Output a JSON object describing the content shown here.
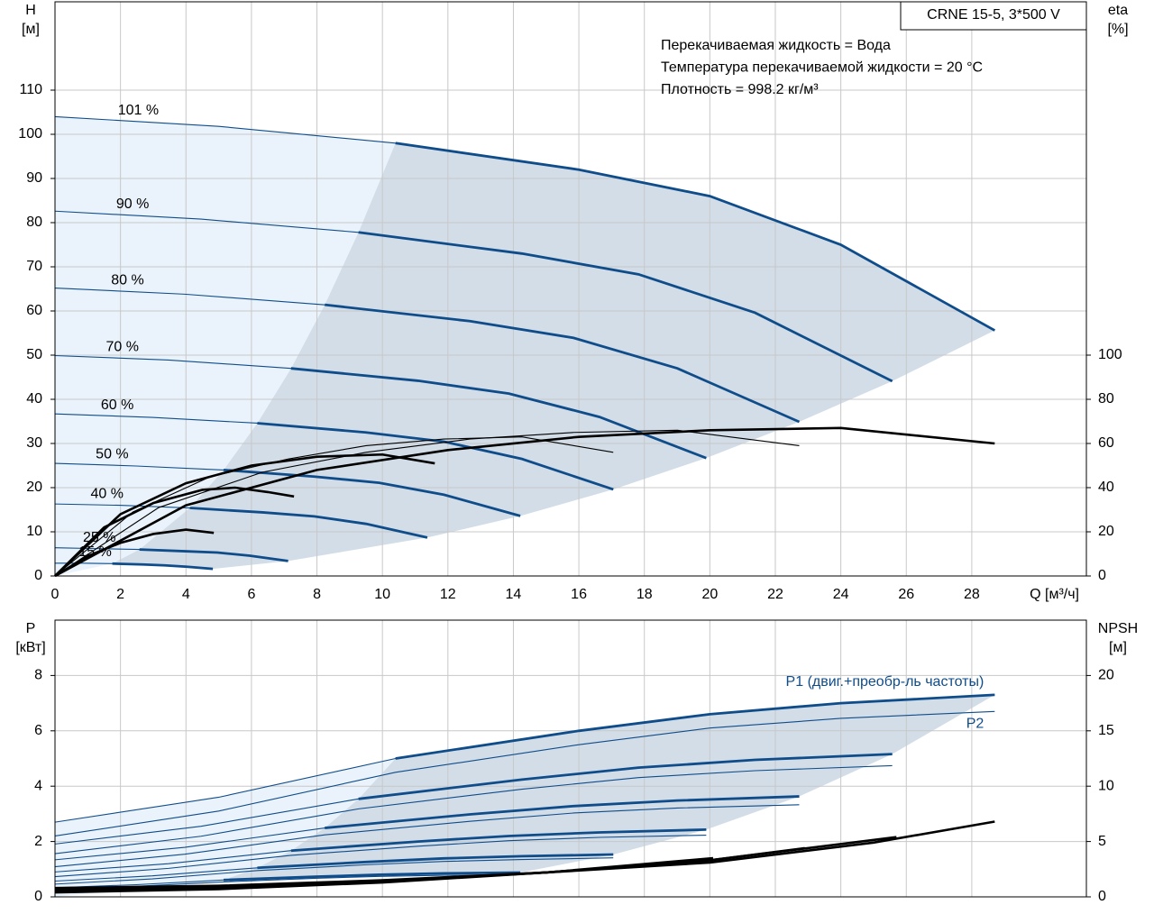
{
  "chart_data": [
    {
      "type": "line",
      "title": "CRNE 15-5, 3*500 V",
      "annotations": [
        "Перекачиваемая жидкость = Вода",
        "Температура перекачиваемой жидкости = 20 °C",
        "Плотность = 998.2 кг/м³"
      ],
      "xlabel": "Q [м³/ч]",
      "ylabel": [
        "H",
        "[м]"
      ],
      "y2label": [
        "eta",
        "[%]"
      ],
      "xlim": [
        0,
        31.5
      ],
      "ylim": [
        0,
        130
      ],
      "y2lim": [
        0,
        260
      ],
      "xticks": [
        0,
        2,
        4,
        6,
        8,
        10,
        12,
        14,
        16,
        18,
        20,
        22,
        24,
        26,
        28
      ],
      "yticks": [
        0,
        10,
        20,
        30,
        40,
        50,
        60,
        70,
        80,
        90,
        100,
        110
      ],
      "y2ticks": [
        0,
        20,
        40,
        60,
        80,
        100
      ],
      "grid": true,
      "show_xtick_labels": true,
      "series": [
        {
          "name": "101 %",
          "color": "#0f4c8a",
          "style": "operating",
          "x": [
            0,
            5,
            10.4,
            16,
            20,
            24,
            28.7
          ],
          "values": [
            104,
            101.8,
            98,
            92,
            86,
            75,
            55.6
          ]
        },
        {
          "name": "90 %",
          "color": "#0f4c8a",
          "style": "operating",
          "x": [
            0,
            4.46,
            9.27,
            14.26,
            17.82,
            21.38,
            25.57
          ],
          "values": [
            82.6,
            80.8,
            77.8,
            73.0,
            68.3,
            59.6,
            44.1
          ]
        },
        {
          "name": "80 %",
          "color": "#0f4c8a",
          "style": "operating",
          "x": [
            0,
            3.96,
            8.24,
            12.67,
            15.84,
            19.01,
            22.73
          ],
          "values": [
            65.2,
            63.8,
            61.4,
            57.7,
            53.9,
            47.0,
            34.9
          ]
        },
        {
          "name": "70 %",
          "color": "#0f4c8a",
          "style": "operating",
          "x": [
            0,
            3.47,
            7.21,
            11.09,
            13.86,
            16.63,
            19.89
          ],
          "values": [
            49.9,
            48.9,
            47.0,
            44.2,
            41.3,
            36.0,
            26.7
          ]
        },
        {
          "name": "60 %",
          "color": "#0f4c8a",
          "style": "operating",
          "x": [
            0,
            2.97,
            6.18,
            9.5,
            11.88,
            14.26,
            17.05
          ],
          "values": [
            36.7,
            35.9,
            34.6,
            32.5,
            30.4,
            26.5,
            19.6
          ]
        },
        {
          "name": "50 %",
          "color": "#0f4c8a",
          "style": "operating",
          "x": [
            0,
            2.48,
            5.15,
            7.92,
            9.9,
            11.88,
            14.21
          ],
          "values": [
            25.5,
            24.9,
            24.0,
            22.5,
            21.1,
            18.4,
            13.6
          ]
        },
        {
          "name": "40 %",
          "color": "#0f4c8a",
          "style": "operating",
          "x": [
            0,
            1.98,
            4.12,
            6.34,
            7.92,
            9.5,
            11.37
          ],
          "values": [
            16.3,
            16.0,
            15.4,
            14.4,
            13.5,
            11.8,
            8.7
          ]
        },
        {
          "name": "25 %",
          "color": "#0f4c8a",
          "style": "operating",
          "x": [
            0,
            1.24,
            2.58,
            3.97,
            4.96,
            5.95,
            7.12
          ],
          "values": [
            6.4,
            6.2,
            6.0,
            5.6,
            5.3,
            4.6,
            3.4
          ]
        },
        {
          "name": "15 %",
          "color": "#0f4c8a",
          "style": "operating",
          "x": [
            0,
            0.84,
            1.75,
            2.69,
            3.36,
            4.03,
            4.82
          ],
          "values": [
            2.9,
            2.9,
            2.8,
            2.6,
            2.4,
            2.1,
            1.6
          ]
        },
        {
          "color": "#000000",
          "style": "thick",
          "axis": "y2",
          "x": [
            0,
            4,
            8,
            12,
            16,
            20,
            24,
            28.7
          ],
          "values": [
            0,
            32,
            48,
            57,
            63,
            66,
            67,
            60
          ]
        },
        {
          "color": "#000000",
          "style": "thin",
          "axis": "y2",
          "x": [
            0,
            3.17,
            6.34,
            9.5,
            12.67,
            15.84,
            19.01,
            22.73
          ],
          "values": [
            0,
            31,
            47,
            56,
            62,
            65,
            66,
            59
          ]
        },
        {
          "color": "#000000",
          "style": "thin",
          "axis": "y2",
          "x": [
            0,
            2.38,
            4.75,
            7.13,
            9.5,
            11.88,
            14.26,
            17.05
          ],
          "values": [
            0,
            29,
            45,
            53,
            59,
            62,
            63,
            56
          ]
        },
        {
          "color": "#000000",
          "style": "thick",
          "axis": "y2",
          "x": [
            0,
            2,
            4,
            6,
            8,
            10,
            11.6
          ],
          "values": [
            0,
            28,
            42,
            50,
            54,
            55,
            51
          ]
        },
        {
          "color": "#000000",
          "style": "thick",
          "axis": "y2",
          "x": [
            0,
            1.5,
            3,
            4.5,
            5.5,
            6.5,
            7.3
          ],
          "values": [
            0,
            22,
            33,
            39,
            40,
            38,
            36
          ]
        },
        {
          "color": "#000000",
          "style": "thick",
          "axis": "y2",
          "x": [
            0,
            1,
            2,
            3,
            4,
            4.85
          ],
          "values": [
            0,
            9,
            15,
            19,
            21,
            19.5
          ]
        }
      ]
    },
    {
      "type": "line",
      "ylabel": [
        "P",
        "[кВт]"
      ],
      "y2label": [
        "NPSH",
        "[м]"
      ],
      "xlim": [
        0,
        31.5
      ],
      "ylim": [
        0,
        10
      ],
      "y2lim": [
        0,
        25
      ],
      "xticks": [
        0,
        2,
        4,
        6,
        8,
        10,
        12,
        14,
        16,
        18,
        20,
        22,
        24,
        26,
        28
      ],
      "yticks": [
        0,
        2,
        4,
        6,
        8
      ],
      "y2ticks": [
        0,
        5,
        10,
        15,
        20
      ],
      "grid": true,
      "show_xtick_labels": false,
      "series": [
        {
          "name": "P1 (двиг.+преобр-ль частоты)",
          "color": "#0f4c8a",
          "style": "operating",
          "x": [
            0,
            5,
            10.4,
            16,
            20,
            24,
            28.7
          ],
          "values": [
            2.7,
            3.6,
            5.0,
            6.0,
            6.6,
            7.0,
            7.3
          ]
        },
        {
          "color": "#0f4c8a",
          "style": "operating",
          "x": [
            0,
            4.46,
            9.27,
            14.26,
            17.82,
            21.38,
            25.57
          ],
          "values": [
            1.91,
            2.55,
            3.54,
            4.24,
            4.67,
            4.95,
            5.16
          ]
        },
        {
          "color": "#0f4c8a",
          "style": "operating",
          "x": [
            0,
            3.96,
            8.24,
            12.67,
            15.84,
            19.01,
            22.73
          ],
          "values": [
            1.34,
            1.79,
            2.49,
            2.98,
            3.28,
            3.48,
            3.63
          ]
        },
        {
          "color": "#0f4c8a",
          "style": "operating",
          "x": [
            0,
            3.47,
            7.21,
            11.09,
            13.86,
            16.63,
            19.89
          ],
          "values": [
            0.9,
            1.2,
            1.67,
            2.0,
            2.2,
            2.33,
            2.43
          ]
        },
        {
          "color": "#0f4c8a",
          "style": "operating",
          "x": [
            0,
            2.97,
            6.18,
            9.5,
            11.88,
            14.26,
            17.05
          ],
          "values": [
            0.57,
            0.76,
            1.05,
            1.26,
            1.39,
            1.47,
            1.53
          ]
        },
        {
          "color": "#0f4c8a",
          "style": "operating",
          "x": [
            0,
            2.48,
            5.15,
            7.92,
            9.9,
            11.88,
            14.21
          ],
          "values": [
            0.33,
            0.44,
            0.61,
            0.73,
            0.8,
            0.85,
            0.88
          ]
        },
        {
          "name": "P2",
          "color": "#0f4c8a",
          "style": "thin",
          "x": [
            0,
            5,
            10.4,
            16,
            20,
            24,
            28.7
          ],
          "values": [
            2.2,
            3.1,
            4.5,
            5.5,
            6.1,
            6.45,
            6.7
          ]
        },
        {
          "color": "#0f4c8a",
          "style": "thin",
          "x": [
            0,
            4.46,
            9.27,
            14.26,
            17.82,
            21.38,
            25.57
          ],
          "values": [
            1.56,
            2.19,
            3.18,
            3.89,
            4.31,
            4.56,
            4.74
          ]
        },
        {
          "color": "#0f4c8a",
          "style": "thin",
          "x": [
            0,
            3.96,
            8.24,
            12.67,
            15.84,
            19.01,
            22.73
          ],
          "values": [
            1.09,
            1.54,
            2.24,
            2.73,
            3.03,
            3.21,
            3.33
          ]
        },
        {
          "color": "#0f4c8a",
          "style": "thin",
          "x": [
            0,
            3.47,
            7.21,
            11.09,
            13.86,
            16.63,
            19.89
          ],
          "values": [
            0.73,
            1.03,
            1.5,
            1.83,
            2.03,
            2.15,
            2.23
          ]
        },
        {
          "color": "#0f4c8a",
          "style": "thin",
          "x": [
            0,
            2.97,
            6.18,
            9.5,
            11.88,
            14.26,
            17.05
          ],
          "values": [
            0.46,
            0.65,
            0.95,
            1.16,
            1.28,
            1.35,
            1.41
          ]
        },
        {
          "color": "#0f4c8a",
          "style": "thin",
          "x": [
            0,
            2.48,
            5.15,
            7.92,
            9.9,
            11.88,
            14.21
          ],
          "values": [
            0.27,
            0.38,
            0.54,
            0.67,
            0.74,
            0.78,
            0.81
          ]
        },
        {
          "color": "#000000",
          "style": "thick",
          "axis": "y2",
          "x": [
            0,
            5,
            10,
            15,
            20,
            25,
            28.7
          ],
          "values": [
            0.8,
            1.0,
            1.5,
            2.2,
            3.1,
            4.9,
            6.8
          ]
        },
        {
          "color": "#000000",
          "style": "thick",
          "axis": "y2",
          "x": [
            0,
            5,
            10,
            15,
            20,
            25.7
          ],
          "values": [
            0.6,
            0.9,
            1.4,
            2.2,
            3.3,
            5.4
          ]
        },
        {
          "color": "#000000",
          "style": "thick",
          "axis": "y2",
          "x": [
            0,
            5,
            10,
            15,
            20,
            22.9
          ],
          "values": [
            0.5,
            0.8,
            1.4,
            2.2,
            3.3,
            4.4
          ]
        },
        {
          "color": "#000000",
          "style": "thick",
          "axis": "y2",
          "x": [
            0,
            5,
            10,
            15,
            20.1
          ],
          "values": [
            0.4,
            0.7,
            1.3,
            2.2,
            3.5
          ]
        }
      ]
    }
  ]
}
